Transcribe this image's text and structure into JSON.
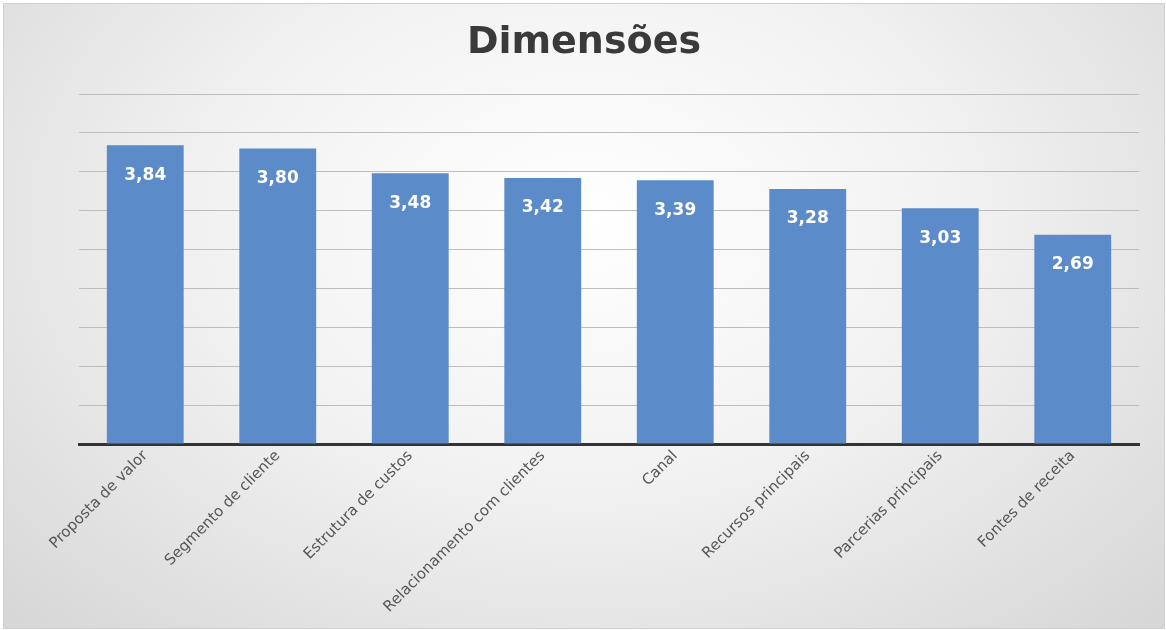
{
  "chart_data": {
    "type": "bar",
    "title": "Dimensões",
    "categories": [
      "Proposta de valor",
      "Segmento de cliente",
      "Estrutura de custos",
      "Relacionamento com clientes",
      "Canal",
      "Recursos principais",
      "Parcerias principais",
      "Fontes de receita"
    ],
    "values": [
      3.84,
      3.8,
      3.48,
      3.42,
      3.39,
      3.28,
      3.03,
      2.69
    ],
    "value_labels": [
      "3,84",
      "3,80",
      "3,48",
      "3,42",
      "3,39",
      "3,28",
      "3,03",
      "2,69"
    ],
    "color": "#5b8bc9",
    "ylim": [
      0,
      4.5
    ],
    "yticks": [
      {
        "value": 0,
        "label": null
      },
      {
        "value": 0.5,
        "label": null
      },
      {
        "value": 1,
        "label": null
      },
      {
        "value": 1.5,
        "label": null
      },
      {
        "value": 2,
        "label": null
      },
      {
        "value": 2.5,
        "label": null
      },
      {
        "value": 3,
        "label": null
      },
      {
        "value": 3.5,
        "label": null
      },
      {
        "value": 4,
        "label": null
      },
      {
        "value": 4.5,
        "label": null
      }
    ],
    "grid": "y",
    "tick_labels": "x"
  }
}
